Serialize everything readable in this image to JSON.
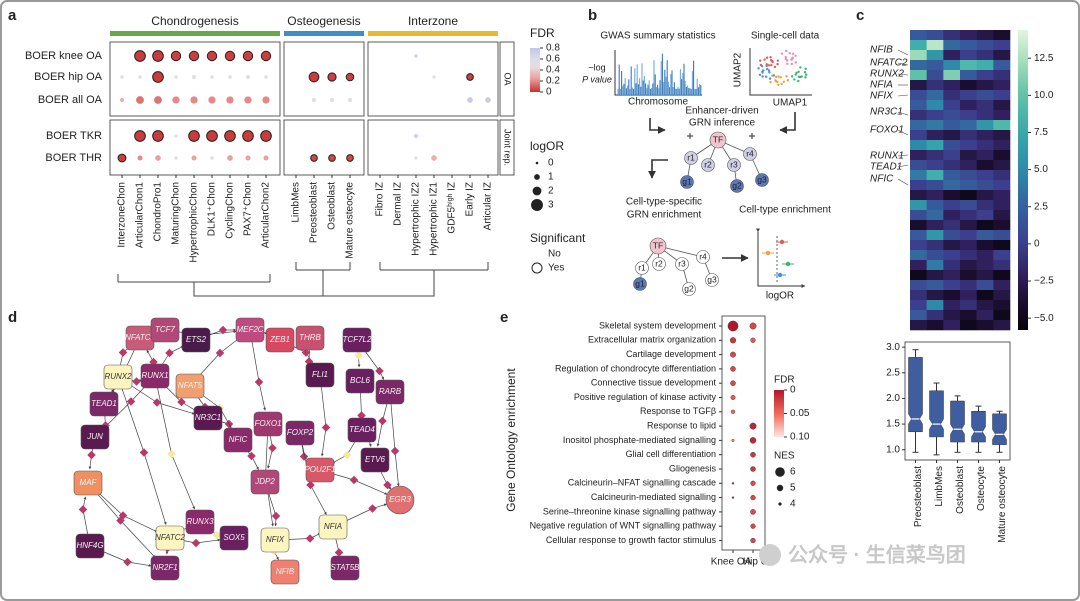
{
  "panel_labels": [
    "a",
    "b",
    "c",
    "d",
    "e"
  ],
  "panel_a": {
    "groups": [
      {
        "name": "Chondrogenesis",
        "color": "#6aa84f",
        "columns": [
          "InterzoneChon",
          "ArticularChon1",
          "ChondroPro1",
          "MaturingChon",
          "HypertrophicChon",
          "DLK1⁺Chon",
          "CyclingChon",
          "PAX7⁺Chon",
          "ArticularChon2"
        ]
      },
      {
        "name": "Osteogenesis",
        "color": "#3d8fc4",
        "columns": [
          "LimbMes",
          "Preosteoblast",
          "Osteoblast",
          "Mature osteocyte"
        ]
      },
      {
        "name": "Interzone",
        "color": "#e8b830",
        "columns": [
          "Fibro IZ",
          "Dermal IZ",
          "Hypertrophic IZ2",
          "Hypertrophic IZ1",
          "GDF5ʰⁱᵍʰ IZ",
          "Early IZ",
          "Articular IZ"
        ]
      }
    ],
    "rows": [
      "BOER knee OA",
      "BOER hip OA",
      "BOER all OA",
      "BOER TKR",
      "BOER THR"
    ],
    "strips": [
      "OA",
      "Joint rep."
    ],
    "log_or": [
      [
        null,
        2.6,
        2.6,
        2.2,
        2.2,
        2.2,
        2.2,
        2.2,
        2.2,
        null,
        null,
        null,
        null,
        null,
        null,
        0.3,
        null,
        null,
        null,
        null
      ],
      [
        0.3,
        0.3,
        2.6,
        0.3,
        0.5,
        0.3,
        0.3,
        0.5,
        0.3,
        null,
        2.3,
        1.8,
        1.6,
        null,
        null,
        null,
        0.2,
        null,
        1.3,
        null
      ],
      [
        0.5,
        1.7,
        1.7,
        1.5,
        1.5,
        1.5,
        1.5,
        1.5,
        1.5,
        null,
        0.5,
        0.5,
        0.5,
        null,
        null,
        null,
        null,
        null,
        1.0,
        1.0
      ],
      [
        null,
        2.6,
        2.6,
        0.3,
        2.6,
        2.6,
        2.6,
        2.6,
        2.6,
        null,
        null,
        null,
        null,
        null,
        null,
        0.5,
        null,
        null,
        null,
        null
      ],
      [
        1.7,
        0.8,
        1.0,
        0.3,
        0.8,
        0.3,
        1.0,
        0.8,
        0.8,
        null,
        1.3,
        1.3,
        1.3,
        null,
        null,
        0.2,
        1.0,
        null,
        null,
        null
      ]
    ],
    "fdr": [
      [
        null,
        0.02,
        0.02,
        0.03,
        0.03,
        0.03,
        0.03,
        0.03,
        0.03,
        null,
        null,
        null,
        null,
        null,
        null,
        0.7,
        null,
        null,
        null,
        null
      ],
      [
        0.5,
        0.5,
        0.02,
        0.5,
        0.45,
        0.5,
        0.5,
        0.45,
        0.5,
        null,
        0.02,
        0.03,
        0.03,
        null,
        null,
        null,
        0.5,
        null,
        0.03,
        null
      ],
      [
        0.3,
        0.15,
        0.15,
        0.2,
        0.2,
        0.2,
        0.2,
        0.2,
        0.2,
        null,
        0.5,
        0.5,
        0.5,
        null,
        null,
        null,
        null,
        null,
        0.75,
        0.75
      ],
      [
        null,
        0.02,
        0.02,
        0.5,
        0.02,
        0.02,
        0.02,
        0.02,
        0.02,
        null,
        null,
        null,
        null,
        null,
        null,
        0.7,
        null,
        null,
        null,
        null
      ],
      [
        0.02,
        0.2,
        0.25,
        0.5,
        0.25,
        0.5,
        0.25,
        0.25,
        0.25,
        null,
        0.05,
        0.05,
        0.05,
        null,
        null,
        0.6,
        0.3,
        null,
        null,
        null
      ]
    ],
    "significant": [
      [
        null,
        true,
        true,
        true,
        true,
        true,
        true,
        true,
        true,
        null,
        null,
        null,
        null,
        null,
        null,
        false,
        null,
        null,
        null,
        null
      ],
      [
        false,
        false,
        true,
        false,
        false,
        false,
        false,
        false,
        false,
        null,
        true,
        true,
        true,
        null,
        null,
        null,
        false,
        null,
        true,
        null
      ],
      [
        false,
        false,
        false,
        false,
        false,
        false,
        false,
        false,
        false,
        null,
        false,
        false,
        false,
        null,
        null,
        null,
        null,
        null,
        false,
        false
      ],
      [
        null,
        true,
        true,
        false,
        true,
        true,
        true,
        true,
        true,
        null,
        null,
        null,
        null,
        null,
        null,
        false,
        null,
        null,
        null,
        null
      ],
      [
        true,
        false,
        false,
        false,
        false,
        false,
        false,
        false,
        false,
        null,
        true,
        true,
        true,
        null,
        null,
        false,
        false,
        null,
        null,
        null
      ]
    ],
    "fdr_legend": {
      "title": "FDR",
      "ticks": [
        0.8,
        0.6,
        0.4,
        0.2,
        0
      ],
      "lim": [
        0,
        0.8
      ]
    },
    "size_legend": {
      "title": "logOR",
      "ticks": [
        0,
        1,
        2,
        3
      ]
    },
    "sig_legend": {
      "title": "Significant",
      "items": [
        "No",
        "Yes"
      ]
    }
  },
  "panel_b": {
    "gwas_title": "GWAS summary statistics",
    "y_label_lines": [
      "−log",
      "P value"
    ],
    "x_label": "Chromosome",
    "sc_title": "Single-cell data",
    "umap_y": "UMAP2",
    "umap_x": "UMAP1",
    "grn_inference": [
      "Enhancer-driven",
      "GRN inference"
    ],
    "tree_nodes": [
      "TF",
      "r1",
      "r2",
      "r3",
      "r4",
      "g1",
      "g2",
      "g3"
    ],
    "grn_enrichment": [
      "Cell-type-specific",
      "GRN enrichment"
    ],
    "celltype_enrichment": "Cell-type enrichment",
    "forest_x": "logOR"
  },
  "panel_c": {
    "genes": [
      "NFIB",
      "NFATC2",
      "RUNX2",
      "NFIA",
      "NFIX",
      "NR3C1",
      "FOXO1",
      "RUNX1",
      "TEAD1",
      "NFIC"
    ],
    "heatmap": [
      [
        2,
        1,
        -1,
        -2,
        -3,
        -4
      ],
      [
        8,
        13,
        3,
        2,
        1,
        0
      ],
      [
        12,
        6,
        -2,
        0,
        -1,
        -3
      ],
      [
        3,
        2,
        5,
        9,
        8,
        2
      ],
      [
        10,
        1,
        11,
        2,
        0,
        -1
      ],
      [
        -3,
        -1,
        -2,
        -4,
        -3,
        -2
      ],
      [
        1,
        3,
        -1,
        0,
        1,
        0
      ],
      [
        2,
        5,
        0,
        -2,
        -1,
        -3
      ],
      [
        -1,
        0,
        1,
        0,
        -1,
        -2
      ],
      [
        3,
        4,
        2,
        3,
        6,
        9
      ],
      [
        0,
        -2,
        -3,
        -1,
        -2,
        -3
      ],
      [
        5,
        7,
        1,
        0,
        -1,
        -2
      ],
      [
        -2,
        -1,
        0,
        -3,
        -2,
        -4
      ],
      [
        1,
        0,
        -1,
        -2,
        -4,
        -3
      ],
      [
        4,
        8,
        2,
        1,
        0,
        -1
      ],
      [
        0,
        1,
        3,
        2,
        1,
        0
      ],
      [
        -3,
        -2,
        -4,
        -5,
        -3,
        -2
      ],
      [
        6,
        2,
        0,
        1,
        -1,
        -2
      ],
      [
        1,
        3,
        -2,
        -1,
        0,
        -3
      ],
      [
        -4,
        -2,
        -1,
        -3,
        -5,
        -4
      ],
      [
        2,
        6,
        1,
        0,
        2,
        1
      ],
      [
        0,
        -1,
        -3,
        -2,
        -4,
        -5
      ],
      [
        3,
        1,
        0,
        -1,
        -2,
        0
      ],
      [
        -2,
        4,
        -1,
        -3,
        -2,
        -1
      ],
      [
        -5,
        -3,
        -2,
        -4,
        -3,
        -5
      ],
      [
        1,
        2,
        0,
        -1,
        1,
        -2
      ],
      [
        -1,
        -3,
        -4,
        -2,
        -5,
        -3
      ],
      [
        0,
        5,
        -2,
        -1,
        -3,
        -4
      ],
      [
        2,
        -1,
        -3,
        -4,
        -2,
        -5
      ],
      [
        -3,
        -4,
        -2,
        -5,
        -4,
        -3
      ]
    ],
    "clim": [
      -5.8,
      14.4
    ],
    "cticks": [
      12.5,
      {
        "value": 10,
        "label": "10.0"
      },
      7.5,
      {
        "value": 5,
        "label": "5.0"
      },
      2.5,
      0,
      {
        "value": -2.5,
        "label": "−2.5"
      },
      {
        "value": -5,
        "label": "−5.0"
      }
    ],
    "box": {
      "categories": [
        "Preosteoblast",
        "LimbMes",
        "Osteoblast",
        "Osteocyte",
        "Mature osteocyte"
      ],
      "whisker_low": [
        0.95,
        0.9,
        0.95,
        0.95,
        0.95
      ],
      "q1": [
        1.35,
        1.25,
        1.15,
        1.15,
        1.1
      ],
      "median": [
        1.6,
        1.5,
        1.4,
        1.35,
        1.3
      ],
      "q3": [
        2.8,
        2.15,
        1.95,
        1.75,
        1.7
      ],
      "whisker_high": [
        2.95,
        2.3,
        2.05,
        1.85,
        1.75
      ],
      "color": "#3f5ea0",
      "ylim": [
        0.8,
        3.1
      ],
      "yticks": [
        {
          "value": 1,
          "label": "1.0"
        },
        1.5,
        {
          "value": 2,
          "label": "2.0"
        },
        2.5,
        {
          "value": 3,
          "label": "3.0"
        }
      ]
    }
  },
  "panel_d": {
    "nodes": [
      {
        "label": "NFATC1",
        "color": "#c85a7a"
      },
      {
        "label": "TCF7",
        "color": "#b04878"
      },
      {
        "label": "ETS2",
        "color": "#4a1a4a"
      },
      {
        "label": "MEF2C",
        "color": "#c04a80"
      },
      {
        "label": "ZEB1",
        "color": "#d84860"
      },
      {
        "label": "THRB",
        "color": "#c85070"
      },
      {
        "label": "TCF7L2",
        "color": "#6a2060"
      },
      {
        "label": "RUNX2",
        "color": "#fdf5c0"
      },
      {
        "label": "RUNX1",
        "color": "#8a2a6a"
      },
      {
        "label": "NFAT5",
        "color": "#f0a070"
      },
      {
        "label": "FLI1",
        "color": "#5a1a50"
      },
      {
        "label": "BCL6",
        "color": "#6a2060"
      },
      {
        "label": "RARB",
        "color": "#7a2868"
      },
      {
        "label": "TEAD1",
        "color": "#7a2868"
      },
      {
        "label": "NR3C1",
        "color": "#5a1a50"
      },
      {
        "label": "FOXO1",
        "color": "#a03870"
      },
      {
        "label": "FOXP2",
        "color": "#7a2868"
      },
      {
        "label": "NFIC",
        "color": "#8a2a6a"
      },
      {
        "label": "TEAD4",
        "color": "#6a2060"
      },
      {
        "label": "JUN",
        "color": "#5a1a50"
      },
      {
        "label": "MAF",
        "color": "#f09060"
      },
      {
        "label": "JDP2",
        "color": "#b04878"
      },
      {
        "label": "POU2F1",
        "color": "#d85868"
      },
      {
        "label": "ETV6",
        "color": "#5a1a50"
      },
      {
        "label": "EGR3",
        "color": "#e07070"
      },
      {
        "label": "NFATC2",
        "color": "#fdf5c0"
      },
      {
        "label": "RUNX3",
        "color": "#8a2a6a"
      },
      {
        "label": "SOX5",
        "color": "#6a2060"
      },
      {
        "label": "NFIX",
        "color": "#fdf5c0"
      },
      {
        "label": "NFIA",
        "color": "#fdf5c0"
      },
      {
        "label": "NFIB",
        "color": "#f08070"
      },
      {
        "label": "STAT5B",
        "color": "#7a2868"
      },
      {
        "label": "HNF4G",
        "color": "#5a1a50"
      },
      {
        "label": "NR2F1",
        "color": "#7a2868"
      }
    ]
  },
  "panel_e": {
    "y_label": "Gene Ontology enrichment",
    "terms": [
      "Skeletal system development",
      "Extracellular matrix organization",
      "Cartilage development",
      "Regulation of chondrocyte differentiation",
      "Connective tissue development",
      "Positive regulation of kinase activity",
      "Response to TGFβ",
      "Response to lipid",
      "Inositol phosphate-mediated signalling",
      "Glial cell differentiation",
      "Gliogenesis",
      "Calcineurin–NFAT signalling cascade",
      "Calcineurin-mediated signalling",
      "Serine–threonine kinase signalling pathway",
      "Negative regulation of WNT signalling pathway",
      "Cellular response to growth factor stimulus"
    ],
    "columns": [
      "Knee OA",
      "Hip OA"
    ],
    "nes": [
      [
        6.2,
        5.0
      ],
      [
        4.8,
        4.5
      ],
      [
        4.7,
        null
      ],
      [
        4.6,
        null
      ],
      [
        4.6,
        null
      ],
      [
        4.4,
        null
      ],
      [
        4.2,
        null
      ],
      [
        null,
        5.0
      ],
      [
        3.8,
        4.9
      ],
      [
        null,
        4.6
      ],
      [
        null,
        4.6
      ],
      [
        3.6,
        4.5
      ],
      [
        3.6,
        4.5
      ],
      [
        null,
        4.6
      ],
      [
        null,
        4.5
      ],
      [
        null,
        4.5
      ]
    ],
    "fdr": [
      [
        0.0,
        0.03
      ],
      [
        0.02,
        0.04
      ],
      [
        0.03,
        null
      ],
      [
        0.03,
        null
      ],
      [
        0.03,
        null
      ],
      [
        0.04,
        null
      ],
      [
        0.05,
        null
      ],
      [
        null,
        0.01
      ],
      [
        0.06,
        0.01
      ],
      [
        null,
        0.02
      ],
      [
        null,
        0.02
      ],
      [
        0.01,
        0.03
      ],
      [
        0.01,
        0.03
      ],
      [
        null,
        0.03
      ],
      [
        null,
        0.03
      ],
      [
        null,
        0.03
      ]
    ],
    "fdr_legend": {
      "title": "FDR",
      "ticks": [
        0,
        0.05,
        {
          "value": 0.1,
          "label": "0.10"
        }
      ],
      "lim": [
        0,
        0.1
      ]
    },
    "nes_legend": {
      "title": "NES",
      "ticks": [
        6,
        5,
        4
      ]
    }
  },
  "watermark": "公众号 · 生信菜鸟团"
}
